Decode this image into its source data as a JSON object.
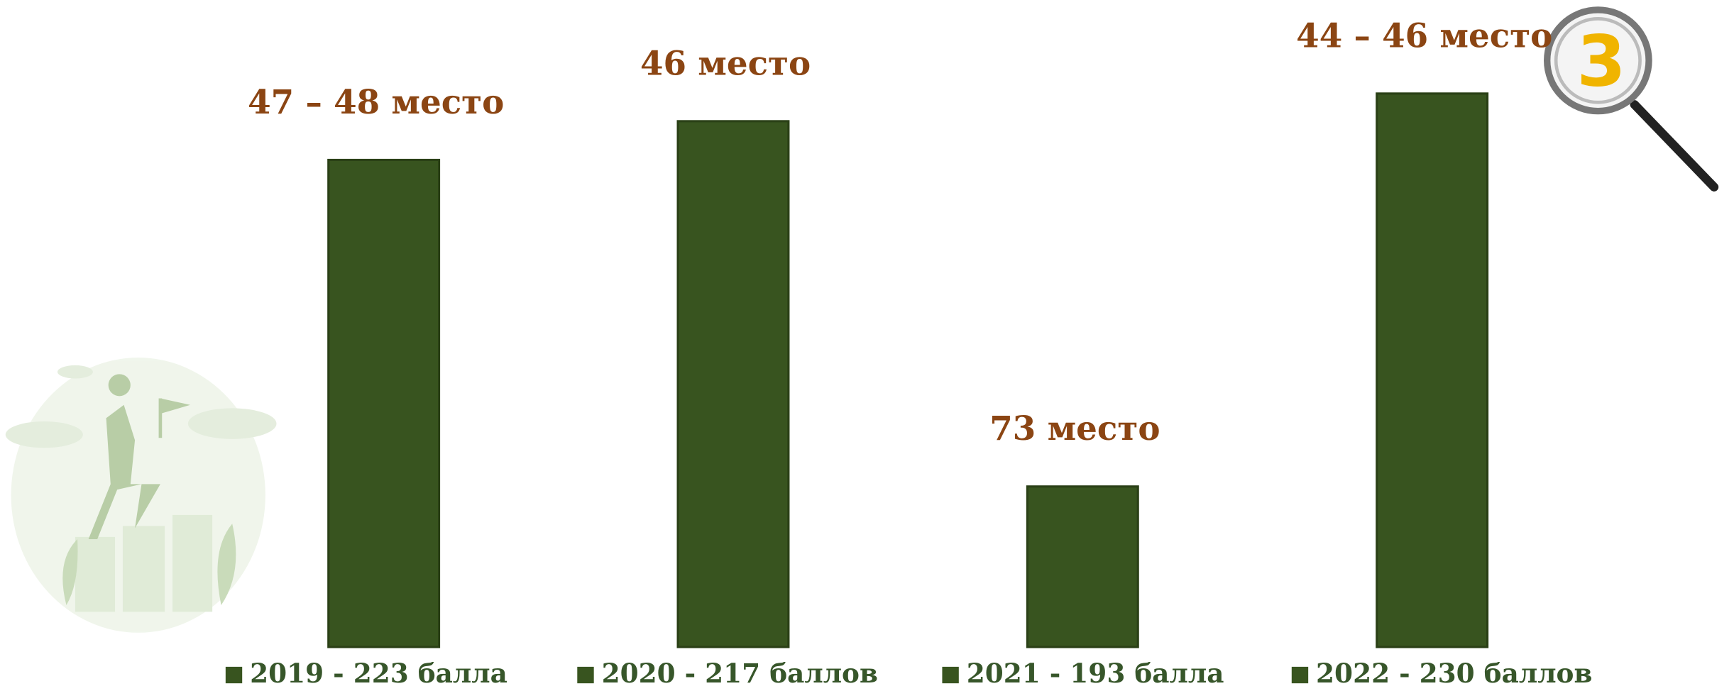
{
  "chart_data": {
    "type": "bar",
    "categories": [
      "2019 - 223 балла",
      "2020 - 217 баллов",
      "2021 - 193 балла",
      "2022 - 230 баллов"
    ],
    "values": [
      88,
      95,
      29,
      100
    ],
    "annotations": [
      "47 – 48 место",
      "46  место",
      "73 место",
      "44 – 46 место"
    ],
    "color": "#38541f",
    "ylim": [
      0,
      100
    ]
  },
  "badge": "3"
}
